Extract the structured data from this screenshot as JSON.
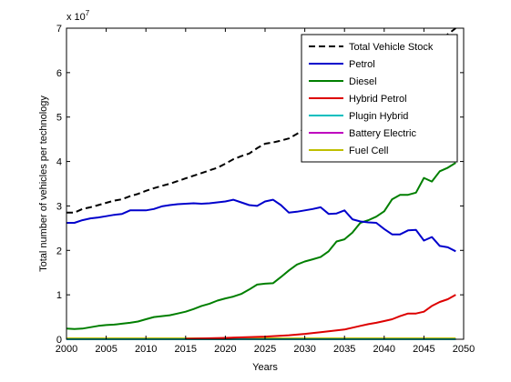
{
  "chart_data": {
    "type": "line",
    "xlabel": "Years",
    "ylabel": "Total number of vehicles per technology",
    "xlim": [
      2000,
      2050
    ],
    "ylim": [
      0,
      7
    ],
    "y_multiplier_label": "x 10",
    "y_multiplier_exponent": "7",
    "x_ticks": [
      2000,
      2005,
      2010,
      2015,
      2020,
      2025,
      2030,
      2035,
      2040,
      2045,
      2050
    ],
    "y_ticks": [
      0,
      1,
      2,
      3,
      4,
      5,
      6,
      7
    ],
    "grid": false,
    "legend_position": "top-right",
    "series": [
      {
        "name": "Total Vehicle Stock",
        "color": "#000000",
        "dash": "dashed",
        "x": [
          2000,
          2001,
          2002,
          2003,
          2004,
          2005,
          2006,
          2007,
          2008,
          2009,
          2010,
          2011,
          2012,
          2013,
          2014,
          2015,
          2016,
          2017,
          2018,
          2019,
          2020,
          2021,
          2022,
          2023,
          2024,
          2025,
          2026,
          2027,
          2028,
          2029,
          2030,
          2035,
          2040,
          2045,
          2049
        ],
        "values": [
          2.85,
          2.85,
          2.93,
          2.97,
          3.02,
          3.07,
          3.12,
          3.15,
          3.22,
          3.27,
          3.34,
          3.4,
          3.45,
          3.5,
          3.56,
          3.62,
          3.68,
          3.74,
          3.8,
          3.86,
          3.95,
          4.05,
          4.12,
          4.18,
          4.3,
          4.4,
          4.43,
          4.47,
          4.52,
          4.62,
          4.75,
          5.25,
          5.85,
          6.45,
          7.0
        ]
      },
      {
        "name": "Petrol",
        "color": "#0000cc",
        "dash": "solid",
        "x": [
          2000,
          2001,
          2002,
          2003,
          2004,
          2005,
          2006,
          2007,
          2008,
          2009,
          2010,
          2011,
          2012,
          2013,
          2014,
          2015,
          2016,
          2017,
          2018,
          2019,
          2020,
          2021,
          2022,
          2023,
          2024,
          2025,
          2026,
          2027,
          2028,
          2029,
          2030,
          2031,
          2032,
          2033,
          2034,
          2035,
          2036,
          2037,
          2038,
          2039,
          2040,
          2041,
          2042,
          2043,
          2044,
          2045,
          2046,
          2047,
          2048,
          2049
        ],
        "values": [
          2.62,
          2.62,
          2.68,
          2.72,
          2.74,
          2.77,
          2.8,
          2.82,
          2.9,
          2.9,
          2.9,
          2.93,
          2.99,
          3.02,
          3.04,
          3.05,
          3.06,
          3.05,
          3.06,
          3.08,
          3.1,
          3.14,
          3.08,
          3.02,
          3.0,
          3.1,
          3.14,
          3.02,
          2.85,
          2.87,
          2.9,
          2.93,
          2.97,
          2.82,
          2.83,
          2.9,
          2.7,
          2.65,
          2.63,
          2.62,
          2.48,
          2.36,
          2.36,
          2.45,
          2.46,
          2.22,
          2.3,
          2.1,
          2.07,
          1.98
        ]
      },
      {
        "name": "Diesel",
        "color": "#007f00",
        "dash": "solid",
        "x": [
          2000,
          2001,
          2002,
          2003,
          2004,
          2005,
          2006,
          2007,
          2008,
          2009,
          2010,
          2011,
          2012,
          2013,
          2014,
          2015,
          2016,
          2017,
          2018,
          2019,
          2020,
          2021,
          2022,
          2023,
          2024,
          2025,
          2026,
          2027,
          2028,
          2029,
          2030,
          2031,
          2032,
          2033,
          2034,
          2035,
          2036,
          2037,
          2038,
          2039,
          2040,
          2041,
          2042,
          2043,
          2044,
          2045,
          2046,
          2047,
          2048,
          2049
        ],
        "values": [
          0.24,
          0.23,
          0.24,
          0.27,
          0.3,
          0.32,
          0.33,
          0.35,
          0.37,
          0.4,
          0.45,
          0.5,
          0.52,
          0.54,
          0.58,
          0.62,
          0.68,
          0.75,
          0.8,
          0.87,
          0.92,
          0.96,
          1.02,
          1.12,
          1.23,
          1.25,
          1.26,
          1.4,
          1.55,
          1.68,
          1.75,
          1.8,
          1.85,
          1.98,
          2.2,
          2.25,
          2.4,
          2.62,
          2.68,
          2.76,
          2.88,
          3.15,
          3.25,
          3.25,
          3.3,
          3.63,
          3.55,
          3.78,
          3.86,
          3.97
        ]
      },
      {
        "name": "Hybrid Petrol",
        "color": "#dd0000",
        "dash": "solid",
        "x": [
          2015,
          2020,
          2025,
          2028,
          2030,
          2032,
          2034,
          2035,
          2036,
          2037,
          2038,
          2039,
          2040,
          2041,
          2042,
          2043,
          2044,
          2045,
          2046,
          2047,
          2048,
          2049
        ],
        "values": [
          0.01,
          0.03,
          0.06,
          0.09,
          0.12,
          0.16,
          0.2,
          0.22,
          0.26,
          0.3,
          0.34,
          0.37,
          0.41,
          0.45,
          0.52,
          0.58,
          0.58,
          0.62,
          0.75,
          0.84,
          0.9,
          1.0
        ]
      },
      {
        "name": "Plugin Hybrid",
        "color": "#00bfbf",
        "dash": "solid",
        "x": [
          2000,
          2049
        ],
        "values": [
          0.0,
          0.0
        ]
      },
      {
        "name": "Battery Electric",
        "color": "#bf00bf",
        "dash": "solid",
        "x": [
          2000,
          2049
        ],
        "values": [
          0.0,
          0.0
        ]
      },
      {
        "name": "Fuel Cell",
        "color": "#bfbf00",
        "dash": "solid",
        "x": [
          2000,
          2049
        ],
        "values": [
          0.02,
          0.02
        ]
      }
    ]
  }
}
